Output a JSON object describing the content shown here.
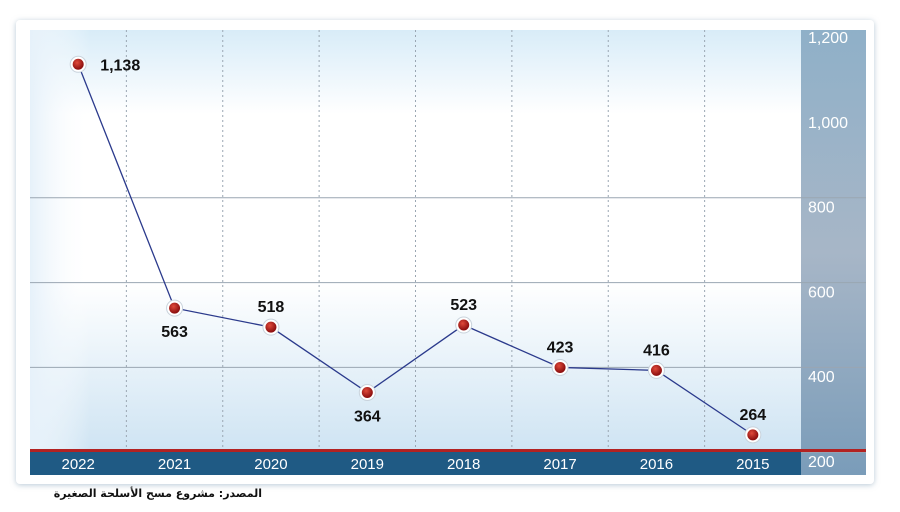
{
  "chart_data": {
    "type": "line",
    "categories": [
      "2022",
      "2021",
      "2020",
      "2019",
      "2018",
      "2017",
      "2016",
      "2015"
    ],
    "values": [
      1138,
      563,
      518,
      364,
      523,
      423,
      416,
      264
    ],
    "value_labels": [
      "1,138",
      "563",
      "518",
      "364",
      "523",
      "423",
      "416",
      "264"
    ],
    "ylim": [
      200,
      1200
    ],
    "yticks": [
      "1,200",
      "1,000",
      "800",
      "600",
      "400",
      "200"
    ],
    "ytick_values": [
      1200,
      1000,
      800,
      600,
      400,
      200
    ],
    "grid": true,
    "y_axis_side": "right",
    "colors": {
      "line": "#2b3a8c",
      "marker_fill": "#b01c1c",
      "marker_ring": "#ffffff",
      "axis_band": "#1f5a84",
      "baseline": "#b22222",
      "right_panel": "#7f9fbc"
    }
  },
  "source": "المصدر: مشروع مسح الأسلحة الصغيرة"
}
